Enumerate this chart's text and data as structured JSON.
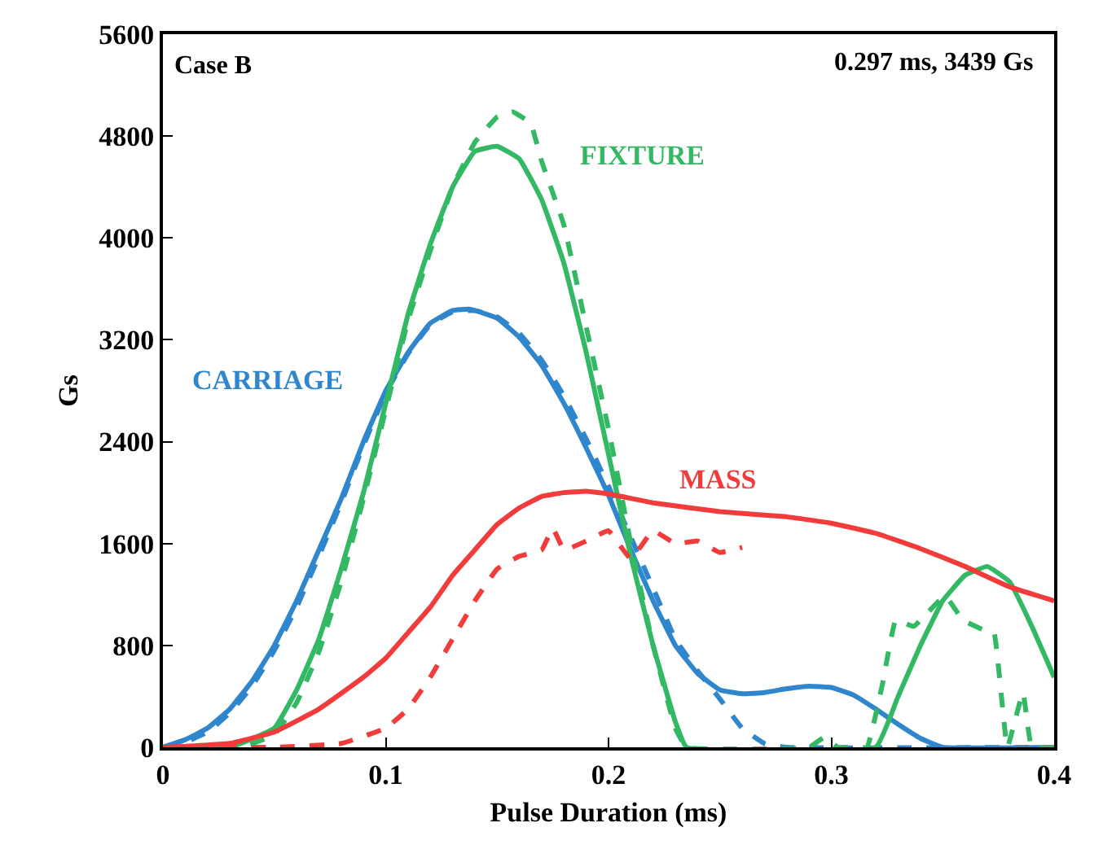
{
  "chart_data": {
    "type": "line",
    "xlabel": "Pulse Duration (ms)",
    "ylabel": "Gs",
    "xlim": [
      0,
      0.4
    ],
    "xticks": [
      0,
      0.1,
      0.2,
      0.3,
      0.4
    ],
    "ylim": [
      0,
      5600
    ],
    "yticks": [
      0,
      800,
      1600,
      2400,
      3200,
      4000,
      4800,
      5600
    ],
    "marker": "none",
    "series": [
      {
        "color": "#2f86cc",
        "line_style": "solid",
        "x": [
          0,
          0.01,
          0.02,
          0.03,
          0.04,
          0.05,
          0.06,
          0.07,
          0.08,
          0.09,
          0.1,
          0.11,
          0.12,
          0.13,
          0.138,
          0.15,
          0.16,
          0.17,
          0.18,
          0.19,
          0.2,
          0.21,
          0.22,
          0.23,
          0.24,
          0.25,
          0.26,
          0.27,
          0.28,
          0.29,
          0.3,
          0.31,
          0.32,
          0.33,
          0.34,
          0.35,
          0.4
        ],
        "values": [
          0,
          60,
          150,
          300,
          520,
          800,
          1150,
          1550,
          1950,
          2400,
          2800,
          3100,
          3330,
          3430,
          3440,
          3370,
          3220,
          3000,
          2700,
          2350,
          1980,
          1550,
          1150,
          800,
          580,
          450,
          420,
          430,
          460,
          480,
          470,
          410,
          300,
          180,
          70,
          0,
          0
        ]
      },
      {
        "color": "#2f86cc",
        "line_style": "dashed",
        "x": [
          0,
          0.01,
          0.02,
          0.03,
          0.04,
          0.05,
          0.06,
          0.07,
          0.08,
          0.09,
          0.1,
          0.11,
          0.12,
          0.13,
          0.14,
          0.15,
          0.16,
          0.17,
          0.18,
          0.19,
          0.2,
          0.21,
          0.22,
          0.23,
          0.24,
          0.25,
          0.26,
          0.27,
          0.28,
          0.4
        ],
        "values": [
          0,
          40,
          120,
          270,
          480,
          760,
          1100,
          1500,
          1920,
          2370,
          2780,
          3090,
          3320,
          3420,
          3430,
          3380,
          3250,
          3040,
          2760,
          2420,
          2050,
          1650,
          1250,
          850,
          600,
          380,
          150,
          30,
          0,
          0
        ]
      },
      {
        "color": "#33b864",
        "line_style": "solid",
        "x": [
          0,
          0.03,
          0.05,
          0.06,
          0.07,
          0.08,
          0.09,
          0.1,
          0.11,
          0.12,
          0.13,
          0.14,
          0.15,
          0.16,
          0.17,
          0.18,
          0.19,
          0.2,
          0.21,
          0.22,
          0.23,
          0.235,
          0.32,
          0.33,
          0.34,
          0.35,
          0.36,
          0.37,
          0.38,
          0.39,
          0.4
        ],
        "values": [
          0,
          0,
          150,
          450,
          850,
          1400,
          2000,
          2700,
          3400,
          3950,
          4400,
          4680,
          4720,
          4620,
          4300,
          3800,
          3100,
          2300,
          1500,
          800,
          200,
          0,
          0,
          400,
          800,
          1150,
          1350,
          1420,
          1300,
          950,
          550
        ]
      },
      {
        "color": "#33b864",
        "line_style": "dashed",
        "x": [
          0,
          0.035,
          0.05,
          0.06,
          0.07,
          0.08,
          0.09,
          0.1,
          0.11,
          0.12,
          0.13,
          0.14,
          0.15,
          0.157,
          0.165,
          0.17,
          0.18,
          0.19,
          0.2,
          0.21,
          0.22,
          0.23,
          0.235,
          0.29,
          0.297,
          0.303,
          0.31,
          0.316,
          0.323,
          0.329,
          0.337,
          0.351,
          0.359,
          0.37,
          0.373,
          0.379,
          0.386,
          0.39,
          0.4
        ],
        "values": [
          0,
          0,
          100,
          350,
          750,
          1300,
          1950,
          2650,
          3350,
          3900,
          4400,
          4750,
          4950,
          4990,
          4900,
          4600,
          4100,
          3300,
          2500,
          1600,
          800,
          150,
          0,
          0,
          80,
          0,
          0,
          0,
          500,
          1000,
          950,
          1190,
          1000,
          910,
          900,
          0,
          430,
          0,
          0
        ]
      },
      {
        "color": "#f23c3c",
        "line_style": "solid",
        "x": [
          0,
          0.03,
          0.05,
          0.07,
          0.09,
          0.1,
          0.11,
          0.12,
          0.13,
          0.14,
          0.15,
          0.16,
          0.17,
          0.18,
          0.19,
          0.2,
          0.22,
          0.25,
          0.28,
          0.3,
          0.32,
          0.34,
          0.36,
          0.38,
          0.4
        ],
        "values": [
          0,
          30,
          120,
          300,
          550,
          700,
          900,
          1100,
          1350,
          1550,
          1750,
          1880,
          1970,
          2000,
          2010,
          1990,
          1920,
          1850,
          1810,
          1760,
          1680,
          1560,
          1420,
          1260,
          1150
        ]
      },
      {
        "color": "#f23c3c",
        "line_style": "dashed",
        "x": [
          0,
          0.05,
          0.08,
          0.1,
          0.11,
          0.12,
          0.13,
          0.14,
          0.15,
          0.16,
          0.17,
          0.175,
          0.18,
          0.19,
          0.2,
          0.21,
          0.22,
          0.23,
          0.24,
          0.25,
          0.26
        ],
        "values": [
          0,
          0,
          30,
          150,
          300,
          550,
          850,
          1150,
          1400,
          1500,
          1550,
          1720,
          1550,
          1620,
          1700,
          1480,
          1700,
          1600,
          1620,
          1530,
          1570
        ]
      }
    ],
    "annotations": [
      "Case B",
      "0.297 ms, 3439 Gs",
      "CARRIAGE",
      "FIXTURE",
      "MASS"
    ]
  }
}
